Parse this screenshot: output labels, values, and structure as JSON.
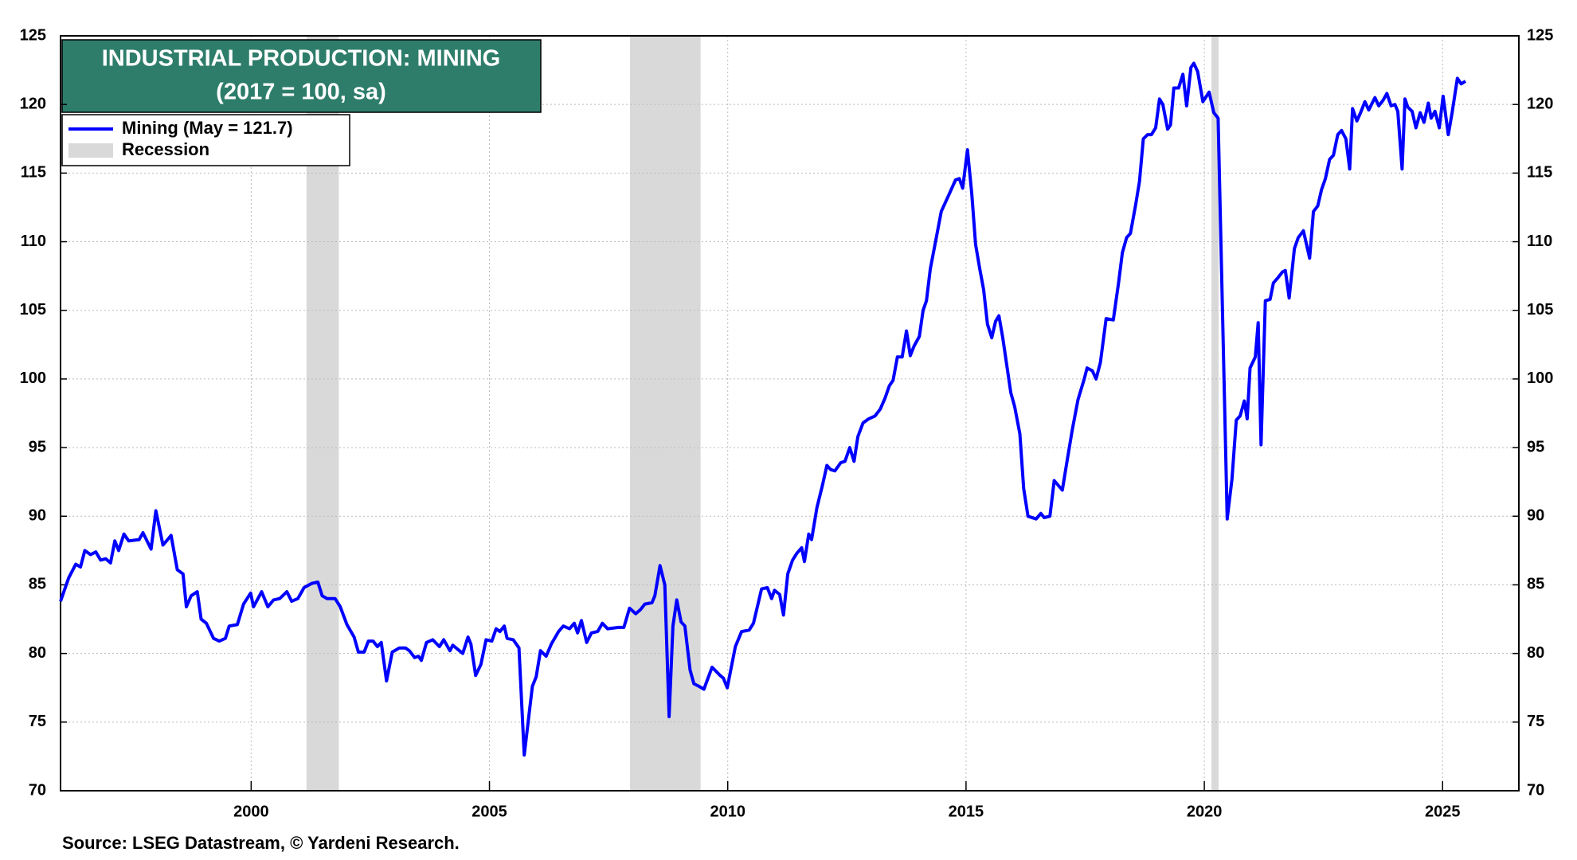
{
  "chart_data": {
    "type": "line",
    "title": "INDUSTRIAL PRODUCTION: MINING",
    "subtitle": "(2017 = 100, sa)",
    "source": "Source: LSEG Datastream, © Yardeni Research.",
    "recession_label": "Recession",
    "recession_color": "#d9d9d9",
    "recessions": [
      [
        2001.16,
        2001.84
      ],
      [
        2007.95,
        2009.43
      ],
      [
        2020.15,
        2020.3
      ]
    ],
    "xlim": [
      1996,
      2026.6
    ],
    "xticks": [
      2000,
      2005,
      2010,
      2015,
      2020,
      2025
    ],
    "ylim": [
      70,
      125
    ],
    "yticks": [
      70,
      75,
      80,
      85,
      90,
      95,
      100,
      105,
      110,
      115,
      120,
      125
    ],
    "y2lim": [
      70,
      125
    ],
    "y2ticks": [
      70,
      75,
      80,
      85,
      90,
      95,
      100,
      105,
      110,
      115,
      120,
      125
    ],
    "grid": true,
    "legend": "upper left",
    "x": [
      1996.0,
      1996.17,
      1996.32,
      1996.42,
      1996.51,
      1996.63,
      1996.74,
      1996.84,
      1996.95,
      1997.05,
      1997.14,
      1997.22,
      1997.33,
      1997.43,
      1997.65,
      1997.73,
      1997.9,
      1998.0,
      1998.15,
      1998.32,
      1998.45,
      1998.57,
      1998.64,
      1998.74,
      1998.87,
      1998.95,
      1999.06,
      1999.21,
      1999.33,
      1999.46,
      1999.54,
      1999.71,
      1999.84,
      1999.99,
      2000.05,
      2000.22,
      2000.35,
      2000.47,
      2000.6,
      2000.75,
      2000.85,
      2000.98,
      2001.11,
      2001.27,
      2001.4,
      2001.49,
      2001.59,
      2001.76,
      2001.87,
      2002.01,
      2002.16,
      2002.25,
      2002.37,
      2002.46,
      2002.56,
      2002.65,
      2002.73,
      2002.84,
      2002.96,
      2003.11,
      2003.24,
      2003.32,
      2003.43,
      2003.51,
      2003.57,
      2003.68,
      2003.81,
      2003.95,
      2004.04,
      2004.17,
      2004.23,
      2004.44,
      2004.55,
      2004.61,
      2004.71,
      2004.82,
      2004.93,
      2005.05,
      2005.14,
      2005.22,
      2005.31,
      2005.37,
      2005.5,
      2005.62,
      2005.73,
      2005.9,
      2005.98,
      2006.07,
      2006.19,
      2006.3,
      2006.45,
      2006.55,
      2006.68,
      2006.78,
      2006.85,
      2006.93,
      2007.04,
      2007.14,
      2007.27,
      2007.37,
      2007.48,
      2007.71,
      2007.82,
      2007.94,
      2008.07,
      2008.17,
      2008.26,
      2008.41,
      2008.47,
      2008.58,
      2008.68,
      2008.77,
      2008.85,
      2008.93,
      2009.02,
      2009.1,
      2009.21,
      2009.29,
      2009.4,
      2009.5,
      2009.67,
      2009.84,
      2009.91,
      2009.99,
      2010.16,
      2010.29,
      2010.45,
      2010.54,
      2010.71,
      2010.83,
      2010.92,
      2010.98,
      2011.09,
      2011.17,
      2011.26,
      2011.36,
      2011.45,
      2011.55,
      2011.61,
      2011.7,
      2011.76,
      2011.87,
      2011.99,
      2012.08,
      2012.16,
      2012.25,
      2012.37,
      2012.46,
      2012.56,
      2012.65,
      2012.73,
      2012.84,
      2012.96,
      2013.09,
      2013.2,
      2013.3,
      2013.39,
      2013.47,
      2013.56,
      2013.66,
      2013.75,
      2013.83,
      2013.91,
      2014.02,
      2014.1,
      2014.17,
      2014.25,
      2014.36,
      2014.48,
      2014.65,
      2014.78,
      2014.86,
      2014.93,
      2015.03,
      2015.12,
      2015.2,
      2015.29,
      2015.37,
      2015.45,
      2015.54,
      2015.62,
      2015.69,
      2015.77,
      2015.94,
      2016.02,
      2016.13,
      2016.21,
      2016.3,
      2016.47,
      2016.57,
      2016.64,
      2016.76,
      2016.85,
      2017.02,
      2017.12,
      2017.23,
      2017.35,
      2017.48,
      2017.54,
      2017.65,
      2017.73,
      2017.82,
      2017.94,
      2018.09,
      2018.2,
      2018.28,
      2018.37,
      2018.45,
      2018.56,
      2018.64,
      2018.72,
      2018.81,
      2018.89,
      2018.98,
      2019.06,
      2019.13,
      2019.23,
      2019.29,
      2019.36,
      2019.46,
      2019.55,
      2019.63,
      2019.72,
      2019.78,
      2019.86,
      2019.97,
      2020.1,
      2020.2,
      2020.29,
      2020.48,
      2020.58,
      2020.67,
      2020.75,
      2020.84,
      2020.9,
      2020.96,
      2021.07,
      2021.13,
      2021.19,
      2021.28,
      2021.38,
      2021.45,
      2021.55,
      2021.64,
      2021.7,
      2021.78,
      2021.89,
      2021.97,
      2022.08,
      2022.21,
      2022.29,
      2022.38,
      2022.46,
      2022.54,
      2022.63,
      2022.71,
      2022.8,
      2022.88,
      2022.97,
      2023.05,
      2023.11,
      2023.2,
      2023.28,
      2023.37,
      2023.45,
      2023.58,
      2023.66,
      2023.75,
      2023.83,
      2023.92,
      2024.0,
      2024.06,
      2024.15,
      2024.21,
      2024.27,
      2024.36,
      2024.44,
      2024.53,
      2024.61,
      2024.7,
      2024.76,
      2024.84,
      2024.93,
      2025.01,
      2025.12,
      2025.2,
      2025.31,
      2025.39,
      2025.48
    ],
    "series": [
      {
        "name": "Mining (May = 121.7)",
        "color": "#0000ff",
        "values": [
          83.8,
          85.5,
          86.5,
          86.3,
          87.5,
          87.2,
          87.4,
          86.8,
          86.9,
          86.6,
          88.2,
          87.5,
          88.7,
          88.2,
          88.3,
          88.8,
          87.6,
          90.4,
          87.9,
          88.6,
          86.1,
          85.8,
          83.4,
          84.2,
          84.5,
          82.5,
          82.2,
          81.1,
          80.9,
          81.1,
          82.0,
          82.1,
          83.6,
          84.4,
          83.4,
          84.5,
          83.4,
          83.9,
          84.0,
          84.5,
          83.8,
          84.0,
          84.8,
          85.1,
          85.2,
          84.2,
          84.0,
          84.0,
          83.4,
          82.1,
          81.2,
          80.1,
          80.1,
          80.9,
          80.9,
          80.5,
          80.8,
          78.0,
          80.1,
          80.4,
          80.4,
          80.2,
          79.7,
          79.8,
          79.5,
          80.8,
          81.0,
          80.5,
          81.0,
          80.2,
          80.6,
          80.0,
          81.2,
          80.7,
          78.4,
          79.2,
          81.0,
          80.9,
          81.8,
          81.6,
          82.0,
          81.1,
          81.0,
          80.4,
          72.6,
          77.6,
          78.3,
          80.2,
          79.8,
          80.7,
          81.6,
          82.0,
          81.8,
          82.2,
          81.5,
          82.4,
          80.8,
          81.5,
          81.6,
          82.2,
          81.8,
          81.9,
          81.9,
          83.3,
          82.9,
          83.2,
          83.6,
          83.7,
          84.2,
          86.4,
          85.0,
          75.4,
          82.0,
          83.9,
          82.3,
          82.0,
          78.8,
          77.8,
          77.6,
          77.4,
          79.0,
          78.4,
          78.2,
          77.5,
          80.5,
          81.6,
          81.7,
          82.2,
          84.7,
          84.8,
          84.0,
          84.6,
          84.3,
          82.8,
          85.8,
          86.8,
          87.3,
          87.7,
          86.7,
          88.7,
          88.3,
          90.6,
          92.3,
          93.7,
          93.4,
          93.3,
          93.9,
          94.0,
          95.0,
          94.0,
          95.8,
          96.8,
          97.1,
          97.3,
          97.8,
          98.6,
          99.5,
          99.9,
          101.6,
          101.6,
          103.5,
          101.7,
          102.4,
          103.1,
          105.0,
          105.7,
          108.0,
          110.0,
          112.2,
          113.5,
          114.5,
          114.6,
          113.9,
          116.7,
          113.5,
          109.8,
          108.0,
          106.5,
          104.0,
          103.0,
          104.2,
          104.6,
          103.0,
          99.0,
          98.0,
          96.0,
          92.0,
          90.0,
          89.8,
          90.2,
          89.9,
          90.0,
          92.6,
          91.9,
          94.0,
          96.3,
          98.5,
          100.0,
          100.8,
          100.6,
          100.0,
          101.2,
          104.4,
          104.3,
          107.0,
          109.2,
          110.3,
          110.6,
          112.7,
          114.4,
          117.5,
          117.8,
          117.8,
          118.3,
          120.4,
          120.0,
          118.2,
          118.5,
          121.2,
          121.2,
          122.2,
          119.9,
          122.7,
          123.0,
          122.4,
          120.2,
          120.9,
          119.4,
          119.0,
          89.8,
          92.7,
          97.0,
          97.3,
          98.4,
          97.1,
          100.8,
          101.6,
          104.1,
          95.2,
          105.7,
          105.8,
          107.0,
          107.4,
          107.8,
          107.9,
          105.9,
          109.5,
          110.3,
          110.8,
          108.8,
          112.2,
          112.6,
          113.8,
          114.6,
          116.0,
          116.3,
          117.8,
          118.1,
          117.5,
          115.3,
          119.7,
          118.8,
          119.4,
          120.2,
          119.6,
          120.5,
          119.9,
          120.3,
          120.8,
          119.9,
          120.0,
          119.5,
          115.3,
          120.4,
          119.8,
          119.5,
          118.3,
          119.4,
          118.7,
          120.1,
          119.0,
          119.5,
          118.3,
          120.6,
          117.8,
          119.4,
          121.9,
          121.5,
          121.7
        ]
      }
    ]
  }
}
